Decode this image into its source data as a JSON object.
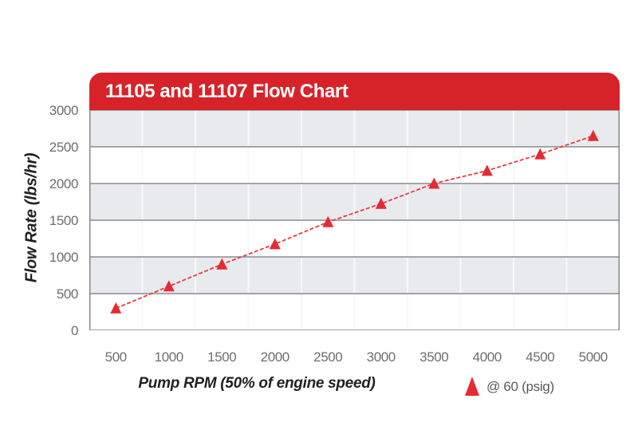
{
  "chart_data": {
    "type": "line",
    "title": "11105 and 11107 Flow Chart",
    "xlabel": "Pump RPM (50% of engine speed)",
    "ylabel": "Flow Rate (lbs/hr)",
    "categories": [
      500,
      1000,
      1500,
      2000,
      2500,
      3000,
      3500,
      4000,
      4500,
      5000
    ],
    "series": [
      {
        "name": "@ 60 (psig)",
        "values": [
          300,
          600,
          900,
          1175,
          1475,
          1725,
          2000,
          2175,
          2400,
          2650
        ],
        "marker": "triangle",
        "line_style": "dashed",
        "line_color": "#ee3a42",
        "marker_color": "#e52b31"
      }
    ],
    "ylim": [
      0,
      3000
    ],
    "yticks": [
      0,
      500,
      1000,
      1500,
      2000,
      2500,
      3000
    ],
    "grid": true,
    "legend_position": "bottom-right",
    "colors": {
      "banner_red": "#d52329",
      "title_text": "#ffffff",
      "band_gray": "#e9eaee",
      "band_white": "#ffffff",
      "h_grid": "#8a8b8d",
      "v_grid": "#f7f8fa",
      "tick_label": "#6d6e71",
      "axis_title": "#231f20",
      "legend_text": "#57585a"
    }
  }
}
